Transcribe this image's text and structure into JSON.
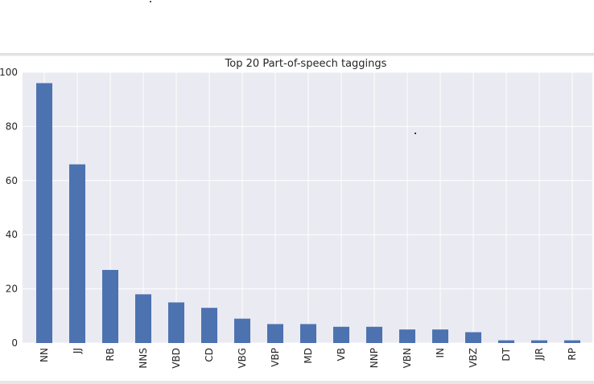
{
  "chart_data": {
    "type": "bar",
    "title": "Top 20 Part-of-speech taggings",
    "xlabel": "",
    "ylabel": "",
    "categories": [
      "NN",
      "JJ",
      "RB",
      "NNS",
      "VBD",
      "CD",
      "VBG",
      "VBP",
      "MD",
      "VB",
      "NNP",
      "VBN",
      "IN",
      "VBZ",
      "DT",
      "JJR",
      "RP"
    ],
    "values": [
      96,
      66,
      27,
      18,
      15,
      13,
      9,
      7,
      7,
      6,
      6,
      5,
      5,
      4,
      1,
      1,
      1
    ],
    "ylim": [
      0,
      100
    ],
    "yticks": [
      "0",
      "20",
      "40",
      "60",
      "80",
      "100"
    ],
    "grid": true,
    "colors": {
      "bar": "#4c72b0",
      "plot_background": "#eaeaf2",
      "grid": "#ffffff"
    }
  }
}
